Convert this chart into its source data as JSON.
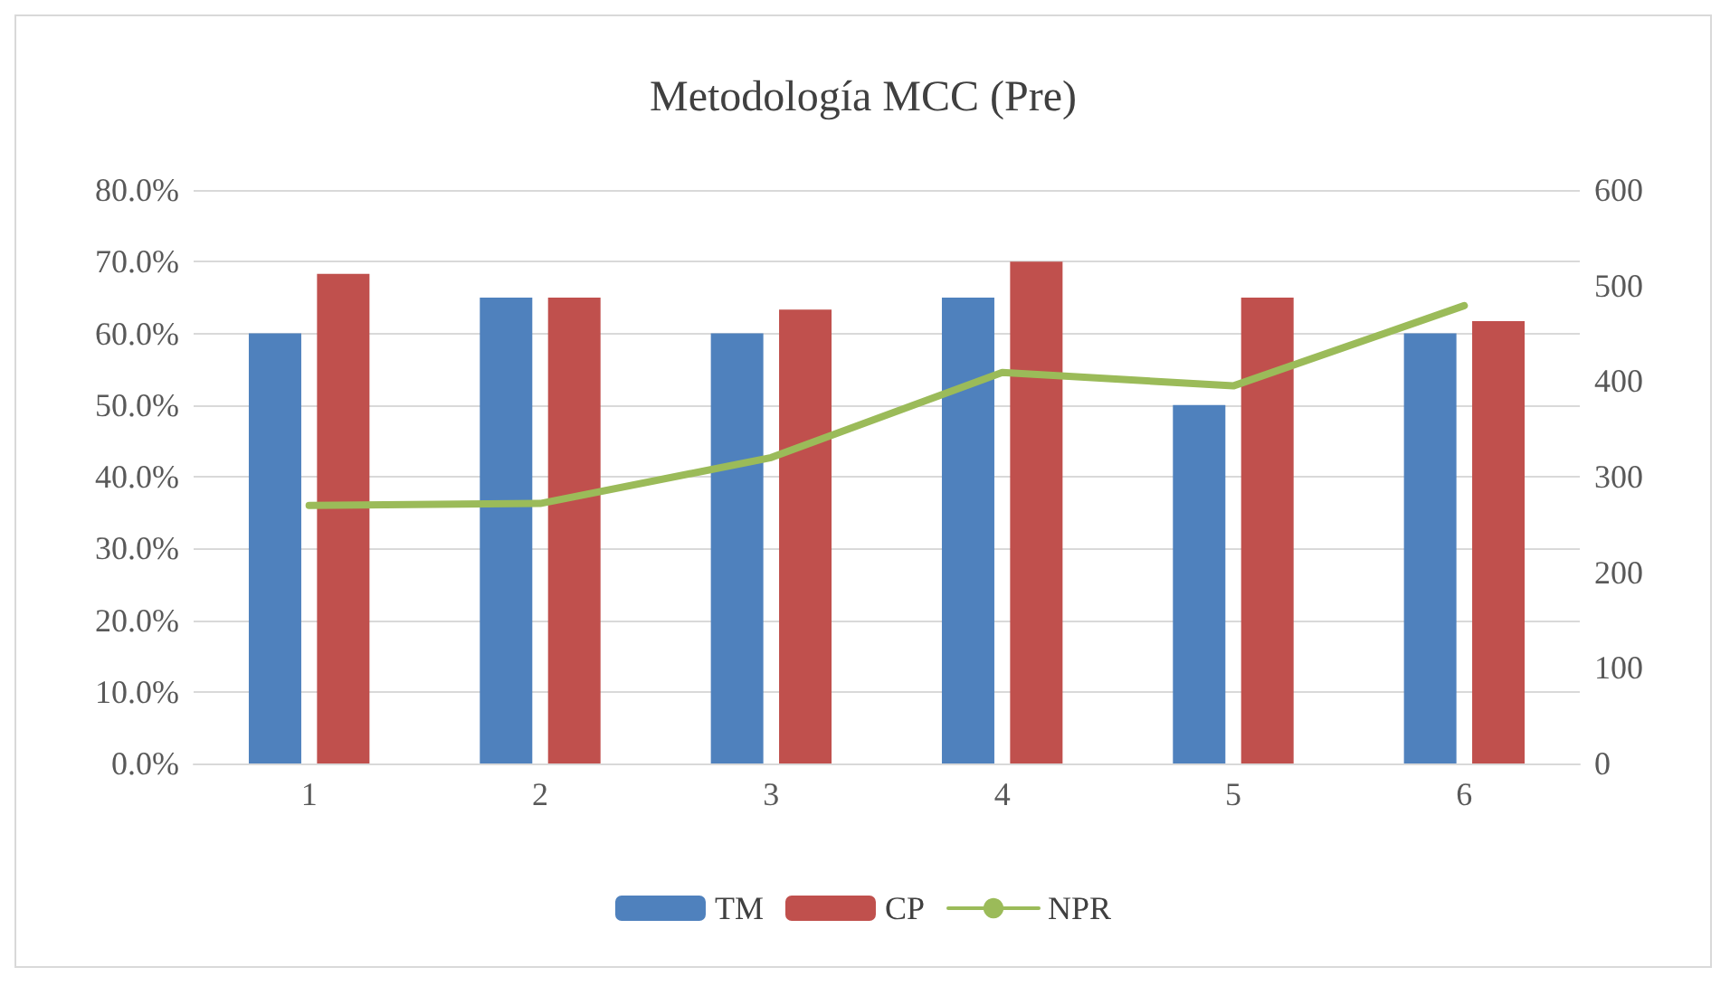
{
  "chart_data": {
    "type": "bar",
    "title": "Metodología MCC (Pre)",
    "categories": [
      "1",
      "2",
      "3",
      "4",
      "5",
      "6"
    ],
    "series": [
      {
        "name": "TM",
        "color": "#4f81bd",
        "values": [
          60,
          65,
          60,
          65,
          50,
          60
        ]
      },
      {
        "name": "CP",
        "color": "#c0504d",
        "values": [
          68.3,
          65,
          63.3,
          70,
          65,
          61.7
        ]
      },
      {
        "name": "NPR",
        "type": "line",
        "axis": "y2",
        "color": "#9bbb59",
        "values": [
          270,
          272,
          320,
          409,
          395,
          479
        ]
      }
    ],
    "ylim": [
      0,
      80
    ],
    "yticks": [
      {
        "value": 0,
        "label": "0.0%"
      },
      {
        "value": 10,
        "label": "10.0%"
      },
      {
        "value": 20,
        "label": "20.0%"
      },
      {
        "value": 30,
        "label": "30.0%"
      },
      {
        "value": 40,
        "label": "40.0%"
      },
      {
        "value": 50,
        "label": "50.0%"
      },
      {
        "value": 60,
        "label": "60.0%"
      },
      {
        "value": 70,
        "label": "70.0%"
      },
      {
        "value": 80,
        "label": "80.0%"
      }
    ],
    "y2lim": [
      0,
      600
    ],
    "y2ticks": [
      0,
      100,
      200,
      300,
      400,
      500,
      600
    ],
    "grid": "y",
    "legend": "bottom",
    "marker": "none",
    "line_style": "solid"
  }
}
